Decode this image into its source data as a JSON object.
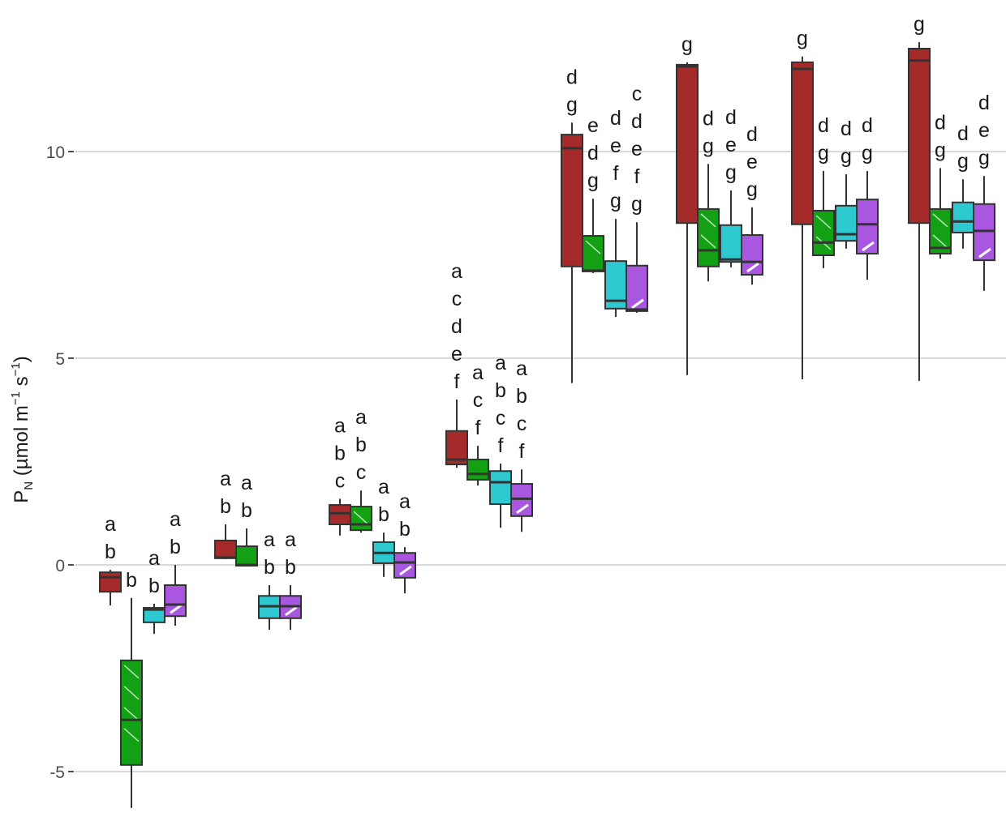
{
  "chart_data": {
    "type": "boxplot",
    "title": "",
    "xlabel": "",
    "ylabel": "P_N (µmol m^-1 s^-1)",
    "ylabel_parts": {
      "main": "P",
      "sub": "N",
      "rest1": " (µmol m",
      "sup1": "−1",
      "rest2": " s",
      "sup2": "−1",
      "rest3": ")"
    },
    "ylim": [
      -6,
      13.5
    ],
    "yticks": [
      -5,
      0,
      5,
      10
    ],
    "ytick_labels": [
      "-5",
      "0",
      "5",
      "10"
    ],
    "grid": true,
    "legend": "none",
    "series_styles": [
      {
        "name": "treatment-1",
        "color": "#a52a2a",
        "pattern": "none"
      },
      {
        "name": "treatment-2",
        "color": "#14a014",
        "pattern": "diagonal-stripes"
      },
      {
        "name": "treatment-3",
        "color": "#2ec8d0",
        "pattern": "none"
      },
      {
        "name": "treatment-4",
        "color": "#a957e0",
        "pattern": "wedge"
      }
    ],
    "groups": [
      {
        "index": 1,
        "boxes": [
          {
            "series": 0,
            "min": -0.98,
            "q1": -0.65,
            "median": -0.3,
            "q3": -0.18,
            "max": -0.12,
            "letters": [
              "a",
              "b"
            ]
          },
          {
            "series": 1,
            "min": -5.88,
            "q1": -4.84,
            "median": -3.75,
            "q3": -2.31,
            "max": -0.8,
            "letters": [
              "b"
            ]
          },
          {
            "series": 2,
            "min": -1.67,
            "q1": -1.39,
            "median": -1.08,
            "q3": -1.04,
            "max": -0.94,
            "letters": [
              "a",
              "b"
            ]
          },
          {
            "series": 3,
            "min": -1.47,
            "q1": -1.24,
            "median": -0.96,
            "q3": -0.49,
            "max": 0.0,
            "letters": [
              "a",
              "b"
            ]
          }
        ]
      },
      {
        "index": 2,
        "boxes": [
          {
            "series": 0,
            "min": 0.14,
            "q1": 0.16,
            "median": 0.18,
            "q3": 0.59,
            "max": 0.98,
            "letters": [
              "a",
              "b"
            ]
          },
          {
            "series": 1,
            "min": -0.02,
            "q1": -0.02,
            "median": 0.0,
            "q3": 0.45,
            "max": 0.88,
            "letters": [
              "a",
              "b"
            ]
          },
          {
            "series": 2,
            "min": -1.57,
            "q1": -1.29,
            "median": -1.0,
            "q3": -0.75,
            "max": -0.49,
            "letters": [
              "a",
              "b"
            ]
          },
          {
            "series": 3,
            "min": -1.57,
            "q1": -1.29,
            "median": -1.0,
            "q3": -0.75,
            "max": -0.49,
            "letters": [
              "a",
              "b"
            ]
          }
        ]
      },
      {
        "index": 3,
        "boxes": [
          {
            "series": 0,
            "min": 0.71,
            "q1": 0.98,
            "median": 1.25,
            "q3": 1.45,
            "max": 1.6,
            "letters": [
              "a",
              "b",
              "c"
            ]
          },
          {
            "series": 1,
            "min": 0.78,
            "q1": 0.84,
            "median": 0.98,
            "q3": 1.41,
            "max": 1.8,
            "letters": [
              "a",
              "b",
              "c"
            ]
          },
          {
            "series": 2,
            "min": -0.29,
            "q1": 0.04,
            "median": 0.29,
            "q3": 0.55,
            "max": 0.78,
            "letters": [
              "a",
              "b"
            ]
          },
          {
            "series": 3,
            "min": -0.69,
            "q1": -0.31,
            "median": 0.06,
            "q3": 0.29,
            "max": 0.43,
            "letters": [
              "a",
              "b"
            ]
          }
        ]
      },
      {
        "index": 4,
        "boxes": [
          {
            "series": 0,
            "min": 2.35,
            "q1": 2.43,
            "median": 2.55,
            "q3": 3.24,
            "max": 4.0,
            "letters": [
              "a",
              "c",
              "d",
              "e",
              "f"
            ]
          },
          {
            "series": 1,
            "min": 1.92,
            "q1": 2.06,
            "median": 2.2,
            "q3": 2.55,
            "max": 2.88,
            "letters": [
              "a",
              "c",
              "f"
            ]
          },
          {
            "series": 2,
            "min": 0.9,
            "q1": 1.47,
            "median": 2.0,
            "q3": 2.27,
            "max": 2.45,
            "letters": [
              "a",
              "b",
              "c",
              "f"
            ]
          },
          {
            "series": 3,
            "min": 0.8,
            "q1": 1.18,
            "median": 1.6,
            "q3": 1.96,
            "max": 2.31,
            "letters": [
              "a",
              "b",
              "c",
              "f"
            ]
          }
        ]
      },
      {
        "index": 5,
        "boxes": [
          {
            "series": 0,
            "min": 4.4,
            "q1": 7.22,
            "median": 10.08,
            "q3": 10.41,
            "max": 10.7,
            "letters": [
              "d",
              "g"
            ]
          },
          {
            "series": 1,
            "min": 7.06,
            "q1": 7.1,
            "median": 7.12,
            "q3": 7.96,
            "max": 8.86,
            "letters": [
              "e",
              "d",
              "g"
            ]
          },
          {
            "series": 2,
            "min": 6.0,
            "q1": 6.2,
            "median": 6.39,
            "q3": 7.35,
            "max": 8.37,
            "letters": [
              "d",
              "e",
              "f",
              "g"
            ]
          },
          {
            "series": 3,
            "min": 6.1,
            "q1": 6.14,
            "median": 6.18,
            "q3": 7.24,
            "max": 8.29,
            "letters": [
              "c",
              "d",
              "e",
              "f",
              "g"
            ]
          }
        ]
      },
      {
        "index": 6,
        "boxes": [
          {
            "series": 0,
            "min": 4.59,
            "q1": 8.27,
            "median": 12.06,
            "q3": 12.1,
            "max": 12.16,
            "letters": [
              "g"
            ]
          },
          {
            "series": 1,
            "min": 6.86,
            "q1": 7.22,
            "median": 7.61,
            "q3": 8.61,
            "max": 9.7,
            "letters": [
              "d",
              "g"
            ]
          },
          {
            "series": 2,
            "min": 7.2,
            "q1": 7.33,
            "median": 7.39,
            "q3": 8.22,
            "max": 9.06,
            "letters": [
              "d",
              "e",
              "g"
            ]
          },
          {
            "series": 3,
            "min": 6.78,
            "q1": 7.02,
            "median": 7.33,
            "q3": 7.98,
            "max": 8.65,
            "letters": [
              "d",
              "e",
              "g"
            ]
          }
        ]
      },
      {
        "index": 7,
        "boxes": [
          {
            "series": 0,
            "min": 4.49,
            "q1": 8.24,
            "median": 12.0,
            "q3": 12.16,
            "max": 12.3,
            "letters": [
              "g"
            ]
          },
          {
            "series": 1,
            "min": 7.18,
            "q1": 7.49,
            "median": 7.8,
            "q3": 8.57,
            "max": 9.53,
            "letters": [
              "d",
              "g"
            ]
          },
          {
            "series": 2,
            "min": 7.65,
            "q1": 7.84,
            "median": 8.0,
            "q3": 8.69,
            "max": 9.45,
            "letters": [
              "d",
              "g"
            ]
          },
          {
            "series": 3,
            "min": 6.9,
            "q1": 7.53,
            "median": 8.24,
            "q3": 8.84,
            "max": 9.53,
            "letters": [
              "d",
              "g"
            ]
          }
        ]
      },
      {
        "index": 8,
        "boxes": [
          {
            "series": 0,
            "min": 4.45,
            "q1": 8.27,
            "median": 12.2,
            "q3": 12.49,
            "max": 12.65,
            "letters": [
              "g"
            ]
          },
          {
            "series": 1,
            "min": 7.41,
            "q1": 7.53,
            "median": 7.67,
            "q3": 8.61,
            "max": 9.6,
            "letters": [
              "d",
              "g"
            ]
          },
          {
            "series": 2,
            "min": 7.65,
            "q1": 8.04,
            "median": 8.31,
            "q3": 8.77,
            "max": 9.33,
            "letters": [
              "d",
              "g"
            ]
          },
          {
            "series": 3,
            "min": 6.63,
            "q1": 7.37,
            "median": 8.08,
            "q3": 8.73,
            "max": 9.41,
            "letters": [
              "d",
              "e",
              "g"
            ]
          }
        ]
      }
    ]
  }
}
